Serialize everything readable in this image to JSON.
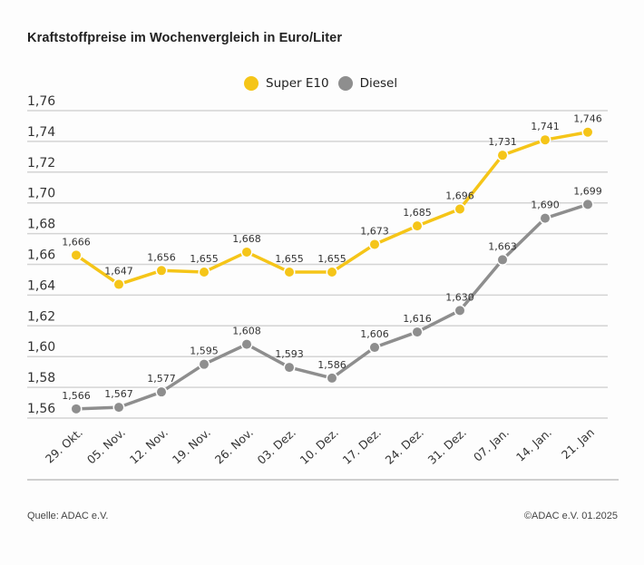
{
  "header": {
    "title": "Kraftstoffpreise im Wochenvergleich in Euro/Liter"
  },
  "footer": {
    "source": "Quelle: ADAC e.V.",
    "copyright": "©ADAC e.V. 01.2025"
  },
  "colors": {
    "super_e10": "#f5c518",
    "diesel": "#8e8e8e",
    "grid": "#d4d4d4",
    "axis_text": "#333333"
  },
  "chart_data": {
    "type": "line",
    "title": "Kraftstoffpreise im Wochenvergleich in Euro/Liter",
    "xlabel": "",
    "ylabel": "",
    "categories": [
      "29. Okt.",
      "05. Nov.",
      "12. Nov.",
      "19. Nov.",
      "26. Nov.",
      "03. Dez.",
      "10. Dez.",
      "17. Dez.",
      "24. Dez.",
      "31. Dez.",
      "07. Jan.",
      "14. Jan.",
      "21. Jan"
    ],
    "series": [
      {
        "name": "Super E10",
        "color": "#f5c518",
        "values": [
          1.666,
          1.647,
          1.656,
          1.655,
          1.668,
          1.655,
          1.655,
          1.673,
          1.685,
          1.696,
          1.731,
          1.741,
          1.746
        ],
        "labels": [
          "1,666",
          "1,647",
          "1,656",
          "1,655",
          "1,668",
          "1,655",
          "1,655",
          "1,673",
          "1,685",
          "1,696",
          "1,731",
          "1,741",
          "1,746"
        ]
      },
      {
        "name": "Diesel",
        "color": "#8e8e8e",
        "values": [
          1.566,
          1.567,
          1.577,
          1.595,
          1.608,
          1.593,
          1.586,
          1.606,
          1.616,
          1.63,
          1.663,
          1.69,
          1.699
        ],
        "labels": [
          "1,566",
          "1,567",
          "1,577",
          "1,595",
          "1,608",
          "1,593",
          "1,586",
          "1,606",
          "1,616",
          "1,630",
          "1,663",
          "1,690",
          "1,699"
        ]
      }
    ],
    "yticks": [
      1.56,
      1.58,
      1.6,
      1.62,
      1.64,
      1.66,
      1.68,
      1.7,
      1.72,
      1.74,
      1.76
    ],
    "ytick_labels": [
      "1,56",
      "1,58",
      "1,60",
      "1,62",
      "1,64",
      "1,66",
      "1,68",
      "1,70",
      "1,72",
      "1,74",
      "1,76"
    ],
    "ylim": [
      1.56,
      1.76
    ],
    "grid": true,
    "legend": {
      "position": "top-center",
      "entries": [
        "Super E10",
        "Diesel"
      ]
    }
  }
}
